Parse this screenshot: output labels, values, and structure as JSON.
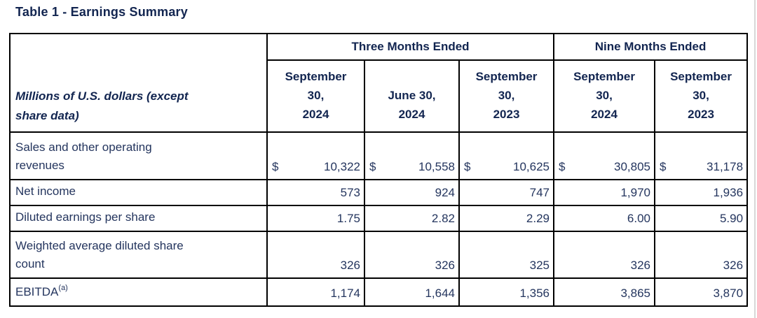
{
  "page": {
    "title": "Table 1 - Earnings Summary"
  },
  "table": {
    "row_header": {
      "lines": [
        "Millions of U.S. dollars (except",
        "share data)"
      ]
    },
    "col_groups": [
      {
        "label": "Three Months Ended",
        "span": 3
      },
      {
        "label": "Nine Months Ended",
        "span": 2
      }
    ],
    "columns": [
      {
        "lines": [
          "September",
          "30,",
          "2024"
        ]
      },
      {
        "lines": [
          "June 30,",
          "2024"
        ]
      },
      {
        "lines": [
          "September",
          "30,",
          "2023"
        ]
      },
      {
        "lines": [
          "September",
          "30,",
          "2024"
        ]
      },
      {
        "lines": [
          "September",
          "30,",
          "2023"
        ]
      }
    ],
    "rows": [
      {
        "label_lines": [
          "Sales and other operating",
          "revenues"
        ],
        "currency_symbol": "$",
        "values": [
          "10,322",
          "10,558",
          "10,625",
          "30,805",
          "31,178"
        ]
      },
      {
        "label_lines": [
          "Net income"
        ],
        "values": [
          "573",
          "924",
          "747",
          "1,970",
          "1,936"
        ]
      },
      {
        "label_lines": [
          "Diluted earnings per share"
        ],
        "values": [
          "1.75",
          "2.82",
          "2.29",
          "6.00",
          "5.90"
        ]
      },
      {
        "label_lines": [
          "Weighted average diluted share",
          "count"
        ],
        "values": [
          "326",
          "326",
          "325",
          "326",
          "326"
        ]
      },
      {
        "label_lines": [
          "EBITDA"
        ],
        "label_superscript": "(a)",
        "values": [
          "1,174",
          "1,644",
          "1,356",
          "3,865",
          "3,870"
        ]
      }
    ]
  },
  "colors": {
    "heading_navy": "#122550",
    "body_navy": "#24355e",
    "border_black": "#000000",
    "background": "#ffffff"
  }
}
